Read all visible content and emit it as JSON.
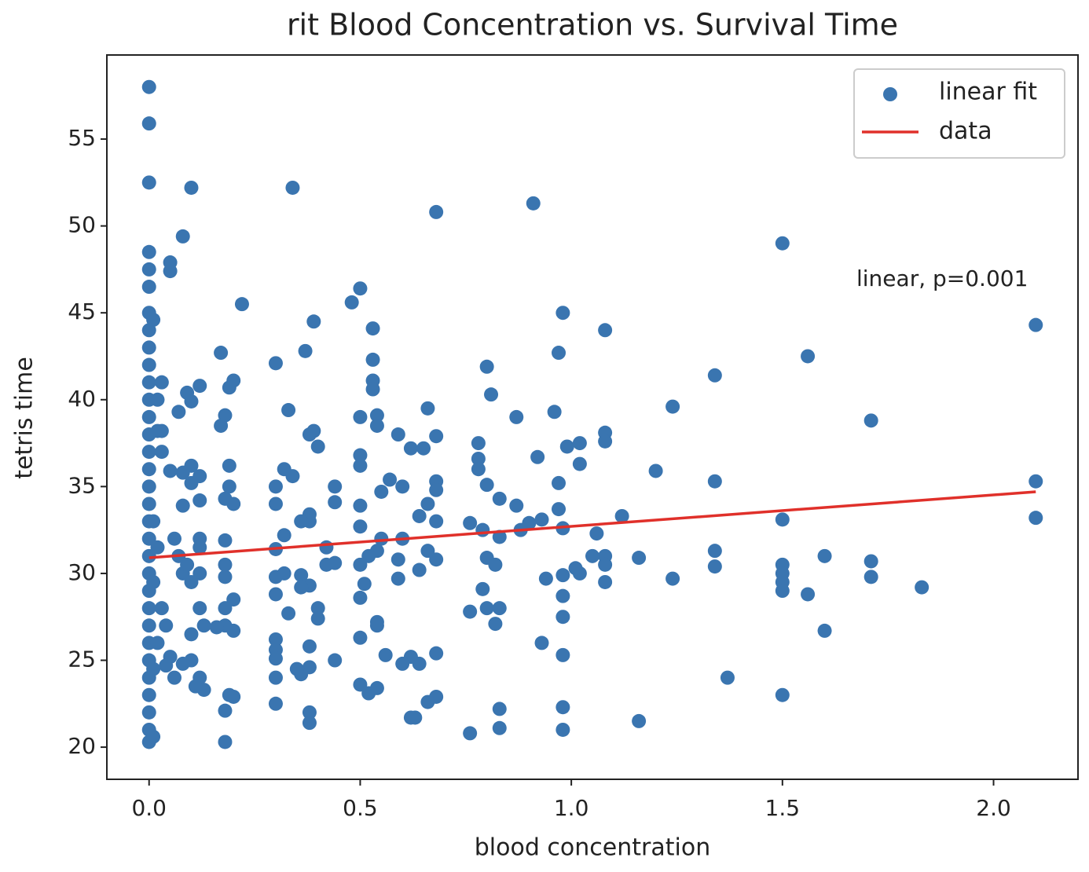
{
  "chart_data": {
    "type": "scatter",
    "title": "rit Blood Concentration vs. Survival Time",
    "x_label": "blood concentration",
    "y_label": "tetris time",
    "annotation": "linear, p=0.001",
    "legend": "upper right",
    "xlim": [
      -0.1,
      2.2
    ],
    "ylim": [
      18.15,
      59.84
    ],
    "xticks": [
      {
        "value": 0,
        "label": "0.0"
      },
      0.5,
      {
        "value": 1,
        "label": "1.0"
      },
      1.5,
      {
        "value": 2,
        "label": "2.0"
      }
    ],
    "yticks": [
      20,
      25,
      30,
      35,
      40,
      45,
      50,
      55
    ],
    "series": [
      {
        "name": "linear fit",
        "type": "scatter",
        "color": "#3a75b0",
        "x": [
          0,
          0,
          0,
          0.1,
          0.34,
          0.68,
          0.91,
          1.5,
          2.1,
          0.08,
          0.05,
          0.05,
          0.22,
          0.5,
          0.48,
          0.53,
          0.39,
          0.37,
          0.3,
          0.17,
          0.98,
          0.97,
          1.08,
          1.56,
          1.34,
          0.8,
          0.81,
          0.53,
          0.53,
          0.53,
          0.2,
          0.19,
          0.12,
          0.09,
          0.1,
          0.07,
          0.03,
          0.33,
          0.5,
          0.54,
          0.54,
          0.66,
          0.87,
          0.96,
          1.24,
          1.71,
          0.17,
          0.18,
          0.38,
          0.39,
          0.4,
          0.59,
          0.62,
          0.68,
          0.65,
          0.78,
          0.78,
          0.78,
          0.92,
          0.99,
          1.02,
          1.02,
          1.08,
          1.08,
          1.2,
          1.34,
          2.1,
          2.1,
          1.5,
          1.34,
          1.34,
          1.5,
          1.5,
          1.5,
          1.5,
          1.56,
          1.6,
          1.6,
          1.71,
          1.71,
          1.83,
          1.5,
          1.37,
          1.24,
          1.16,
          1.16,
          1.12,
          1.08,
          1.08,
          1.08,
          1.05,
          1.06,
          1.02,
          1.01,
          0.98,
          0.98,
          0.98,
          0.98,
          0.98,
          0.98,
          0.94,
          0.93,
          0.97,
          0.97,
          0.98,
          0.93,
          0.9,
          0.88,
          0.87,
          0.83,
          0.83,
          0.8,
          0.79,
          0.76,
          0.8,
          0.82,
          0.79,
          0.8,
          0.83,
          0.82,
          0.76,
          0.83,
          0.83,
          0.76,
          0.68,
          0.68,
          0.68,
          0.66,
          0.66,
          0.68,
          0.64,
          0.68,
          0.68,
          0.66,
          0.64,
          0.62,
          0.6,
          0.56,
          0.62,
          0.63,
          0.6,
          0.59,
          0.59,
          0.64,
          0.6,
          0.57,
          0.55,
          0.55,
          0.54,
          0.52,
          0.5,
          0.51,
          0.5,
          0.5,
          0.5,
          0.52,
          0.54,
          0.54,
          0.54,
          0.5,
          0.5,
          0.5,
          0.5,
          0.44,
          0.44,
          0.42,
          0.42,
          0.44,
          0.44,
          0.38,
          0.38,
          0.38,
          0.4,
          0.4,
          0.38,
          0.38,
          0.38,
          0.38,
          0.36,
          0.35,
          0.36,
          0.34,
          0.32,
          0.3,
          0.3,
          0.32,
          0.3,
          0.3,
          0.32,
          0.3,
          0.33,
          0.3,
          0.3,
          0.3,
          0.3,
          0.3,
          0.36,
          0.36,
          0.2,
          0.18,
          0.18,
          0.18,
          0.18,
          0.2,
          0.19,
          0.18,
          0.19,
          0.18,
          0.2,
          0.19,
          0.18,
          0.2,
          0.18,
          0.16,
          0.12,
          0.12,
          0.12,
          0.12,
          0.13,
          0.12,
          0.13,
          0.11,
          0.1,
          0.1,
          0.08,
          0.06,
          0.05,
          0.04,
          0.08,
          0.1,
          0.09,
          0.07,
          0.06,
          0.08,
          0.12,
          0.12,
          0.1,
          0.08,
          0.05,
          0.1,
          0.02,
          0.03,
          0.03,
          0.01,
          0.02,
          0,
          0,
          0,
          0,
          0,
          0,
          0,
          0,
          0,
          0,
          0,
          0,
          0,
          0,
          0,
          0,
          0,
          0,
          0,
          0,
          0,
          0,
          0,
          0,
          0,
          0,
          0,
          0,
          0,
          0.01,
          0.01,
          0.01,
          0.01,
          0.02,
          0.02,
          0.03,
          0.04
        ],
        "values": [
          58,
          55.9,
          52.5,
          52.2,
          52.2,
          50.8,
          51.3,
          49,
          44.3,
          49.4,
          47.9,
          47.4,
          45.5,
          46.4,
          45.6,
          44.1,
          44.5,
          42.8,
          42.1,
          42.7,
          45,
          42.7,
          44,
          42.5,
          41.4,
          41.9,
          40.3,
          42.3,
          41.1,
          40.6,
          41.1,
          40.7,
          40.8,
          40.4,
          39.9,
          39.3,
          41,
          39.4,
          39,
          39.1,
          38.5,
          39.5,
          39,
          39.3,
          39.6,
          38.8,
          38.5,
          39.1,
          38,
          38.2,
          37.3,
          38,
          37.2,
          37.9,
          37.2,
          37.5,
          36.6,
          36,
          36.7,
          37.3,
          37.5,
          36.3,
          38.1,
          37.6,
          35.9,
          35.3,
          35.3,
          33.2,
          33.1,
          31.3,
          30.4,
          30.5,
          30,
          29.5,
          29,
          28.8,
          31,
          26.7,
          30.7,
          29.8,
          29.2,
          23,
          24,
          29.7,
          30.9,
          21.5,
          33.3,
          31,
          30.5,
          29.5,
          31,
          32.3,
          30,
          30.3,
          29.9,
          28.7,
          27.5,
          25.3,
          22.3,
          21,
          29.7,
          26,
          35.2,
          33.7,
          32.6,
          33.1,
          32.9,
          32.5,
          33.9,
          32.1,
          34.3,
          35.1,
          32.5,
          32.9,
          30.9,
          30.5,
          29.1,
          28,
          28,
          27.1,
          27.8,
          22.2,
          21.1,
          20.8,
          33,
          35.3,
          34.8,
          34,
          31.3,
          30.8,
          30.2,
          25.4,
          22.9,
          22.6,
          24.8,
          25.2,
          24.8,
          25.3,
          21.7,
          21.7,
          32,
          30.8,
          29.7,
          33.3,
          35,
          35.4,
          34.7,
          32,
          31.3,
          31,
          30.5,
          29.4,
          28.6,
          26.3,
          23.6,
          23.1,
          23.4,
          27.2,
          27,
          33.9,
          32.7,
          36.2,
          36.8,
          35,
          34.1,
          31.5,
          30.5,
          30.6,
          25,
          33.4,
          33,
          29.3,
          28,
          27.4,
          25.8,
          22,
          21.4,
          24.6,
          24.2,
          24.5,
          33,
          35.6,
          36,
          35,
          34,
          32.2,
          31.4,
          29.8,
          30,
          28.8,
          27.7,
          26.2,
          25.6,
          25.1,
          24,
          22.5,
          29.9,
          29.2,
          28.5,
          28,
          29.8,
          31.9,
          30.5,
          34,
          35,
          34.3,
          36.2,
          27,
          26.7,
          23,
          22.1,
          22.9,
          20.3,
          26.9,
          32,
          31.5,
          30,
          28,
          27,
          24,
          23.3,
          23.5,
          25,
          26.5,
          24.8,
          24,
          25.2,
          27,
          30,
          29.5,
          30.5,
          31,
          32,
          33.9,
          34.2,
          35.6,
          36.2,
          35.8,
          35.9,
          35.2,
          38.2,
          38.2,
          37,
          44.6,
          40,
          48.5,
          47.5,
          46.5,
          45,
          44,
          43,
          42,
          41,
          40,
          39,
          38,
          37,
          36,
          35,
          34,
          33,
          32,
          31,
          30,
          29,
          28,
          27,
          26,
          25,
          24,
          23,
          22,
          21,
          20.3,
          20.6,
          24.5,
          29.5,
          33,
          31.5,
          26,
          28,
          24.7
        ]
      },
      {
        "name": "data",
        "type": "line",
        "color": "#e0302a",
        "x": [
          0,
          2.1
        ],
        "values": [
          30.9,
          34.7
        ]
      }
    ]
  }
}
